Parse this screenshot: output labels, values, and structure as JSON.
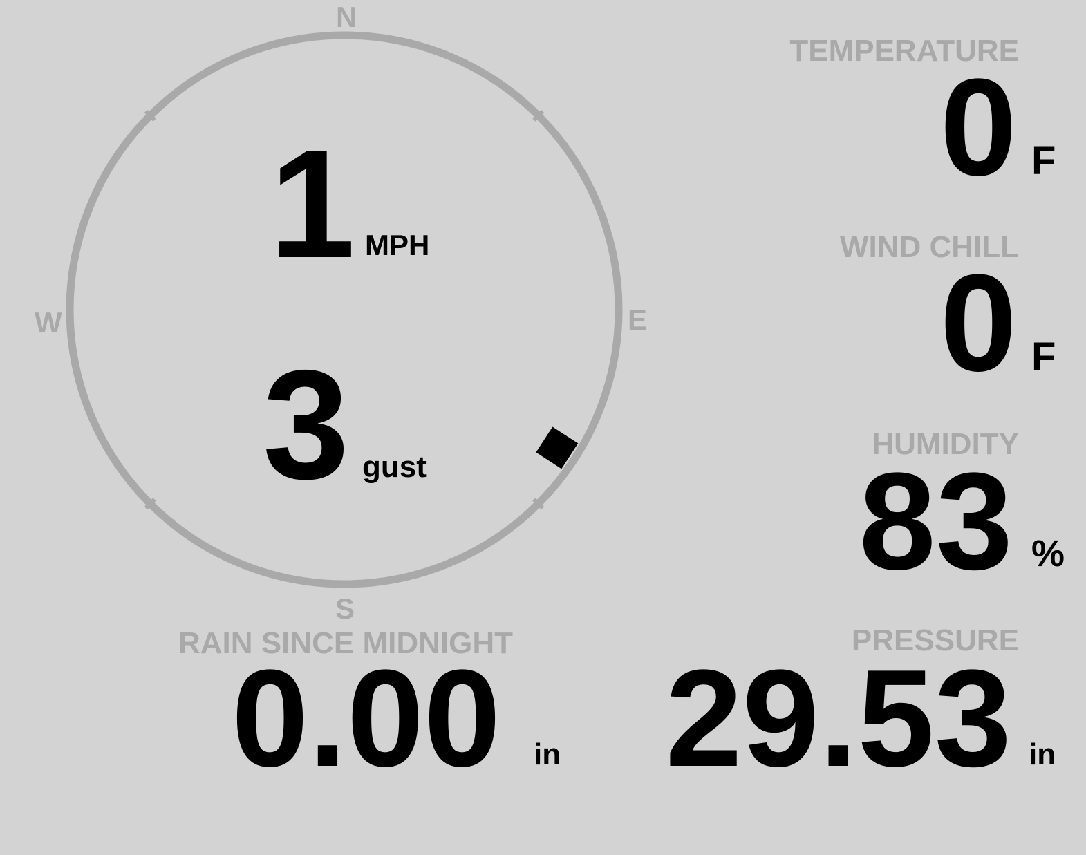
{
  "colors": {
    "background": "#d3d3d3",
    "label": "#a9a9a9",
    "value": "#000000",
    "ring": "#a9a9a9"
  },
  "compass": {
    "n": "N",
    "e": "E",
    "s": "S",
    "w": "W",
    "wind_direction_deg": 123
  },
  "wind": {
    "speed": "1",
    "speed_unit": "MPH",
    "gust": "3",
    "gust_unit": "gust"
  },
  "temperature": {
    "label": "TEMPERATURE",
    "value": "0",
    "unit": "F"
  },
  "wind_chill": {
    "label": "WIND CHILL",
    "value": "0",
    "unit": "F"
  },
  "humidity": {
    "label": "HUMIDITY",
    "value": "83",
    "unit": "%"
  },
  "rain": {
    "label": "RAIN SINCE MIDNIGHT",
    "value": "0.00",
    "unit": "in"
  },
  "pressure": {
    "label": "PRESSURE",
    "value": "29.53",
    "unit": "in"
  }
}
